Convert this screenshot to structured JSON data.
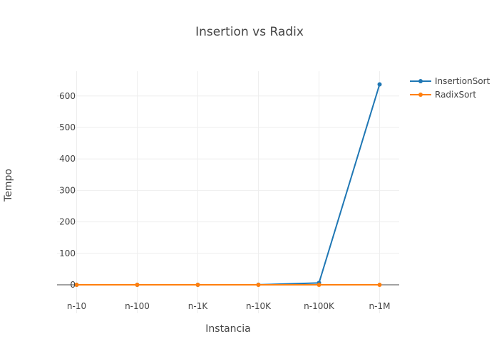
{
  "chart_data": {
    "type": "line",
    "title": "Insertion vs Radix",
    "xlabel": "Instancia",
    "ylabel": "Tempo",
    "categories": [
      "n-10",
      "n-100",
      "n-1K",
      "n-10K",
      "n-100K",
      "n-1M"
    ],
    "ylim": [
      -30,
      680
    ],
    "yticks": [
      0,
      100,
      200,
      300,
      400,
      500,
      600
    ],
    "grid": true,
    "legend_position": "top-right",
    "series": [
      {
        "name": "InsertionSort",
        "color": "#1f77b4",
        "values": [
          0,
          0,
          0,
          0.2,
          6,
          637
        ]
      },
      {
        "name": "RadixSort",
        "color": "#ff7f0e",
        "values": [
          0,
          0,
          0,
          0,
          0,
          0
        ]
      }
    ]
  }
}
